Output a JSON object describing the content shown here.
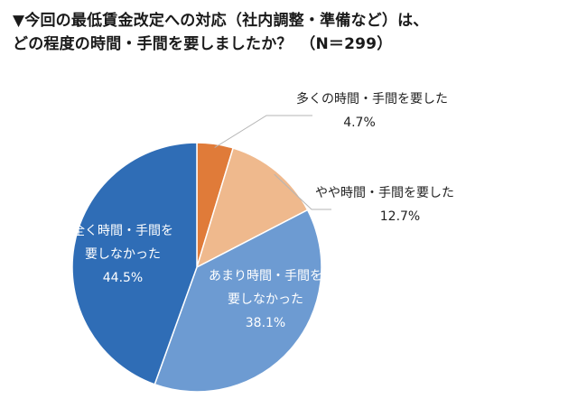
{
  "title_lines": [
    "▼今回の最低賃金改定への対応（社内調整・準備など）は、",
    "どの程度の時間・手間を要しましたか？　（N＝299）"
  ],
  "chart_data": {
    "type": "pie",
    "title": "▼今回の最低賃金改定への対応（社内調整・準備など）は、どの程度の時間・手間を要しましたか？　（N＝299）",
    "start": "12 o'clock",
    "direction": "clockwise",
    "slices": [
      {
        "label_lines": [
          "多くの時間・手間を要した"
        ],
        "value": 4.7,
        "value_label": "4.7%",
        "color": "#e07b39",
        "label_position": "outside",
        "label_color": "#222222"
      },
      {
        "label_lines": [
          "やや時間・手間を要した"
        ],
        "value": 12.7,
        "value_label": "12.7%",
        "color": "#efb98d",
        "label_position": "outside",
        "label_color": "#222222"
      },
      {
        "label_lines": [
          "あまり時間・手間を",
          "要しなかった"
        ],
        "value": 38.1,
        "value_label": "38.1%",
        "color": "#6d9bd2",
        "label_position": "inside",
        "label_color": "#ffffff"
      },
      {
        "label_lines": [
          "全く時間・手間を",
          "要しなかった"
        ],
        "value": 44.5,
        "value_label": "44.5%",
        "color": "#2f6db6",
        "label_position": "inside",
        "label_color": "#ffffff"
      }
    ]
  }
}
